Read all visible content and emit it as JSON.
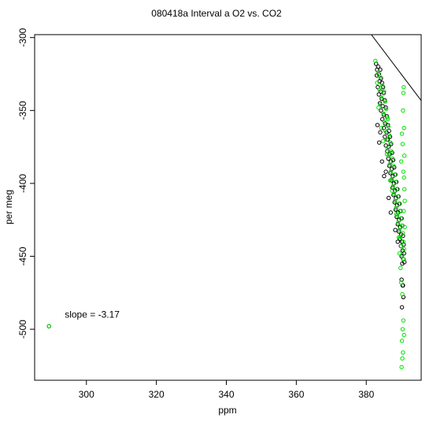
{
  "chart_data": {
    "type": "scatter",
    "title": "080418a   Interval a O2 vs. CO2",
    "xlabel": "ppm",
    "ylabel": "per meg",
    "xlim": [
      285.2,
      395.7
    ],
    "ylim": [
      -535.0,
      -298.0
    ],
    "xticks": [
      300,
      320,
      340,
      360,
      380
    ],
    "yticks": [
      -300,
      -350,
      -400,
      -450,
      -500
    ],
    "ytick_orientation": "vertical",
    "grid": false,
    "legend": "none",
    "annotation": {
      "text": "slope =  -3.17",
      "x": 293.8,
      "y": -492
    },
    "fit_line": {
      "slope": -3.17,
      "intercept": 911.2
    },
    "series": [
      {
        "marker": "open-circle",
        "color": "#000000",
        "points": [
          [
            289.3,
            -498
          ],
          [
            382.8,
            -318
          ],
          [
            383.1,
            -322
          ],
          [
            383.4,
            -320
          ],
          [
            383.0,
            -326
          ],
          [
            383.6,
            -325
          ],
          [
            384.0,
            -322
          ],
          [
            384.2,
            -328
          ],
          [
            383.8,
            -330
          ],
          [
            384.5,
            -331
          ],
          [
            383.3,
            -334
          ],
          [
            384.8,
            -334
          ],
          [
            384.1,
            -337
          ],
          [
            383.6,
            -339
          ],
          [
            385.0,
            -338
          ],
          [
            384.4,
            -342
          ],
          [
            383.9,
            -345
          ],
          [
            385.3,
            -343
          ],
          [
            384.7,
            -347
          ],
          [
            384.2,
            -350
          ],
          [
            385.6,
            -348
          ],
          [
            385.0,
            -353
          ],
          [
            384.6,
            -356
          ],
          [
            385.9,
            -354
          ],
          [
            385.4,
            -359
          ],
          [
            386.2,
            -360
          ],
          [
            385.0,
            -362
          ],
          [
            385.8,
            -365
          ],
          [
            386.5,
            -364
          ],
          [
            385.3,
            -368
          ],
          [
            386.1,
            -370
          ],
          [
            386.8,
            -368
          ],
          [
            385.6,
            -374
          ],
          [
            386.4,
            -375
          ],
          [
            387.1,
            -373
          ],
          [
            386.0,
            -378
          ],
          [
            386.7,
            -380
          ],
          [
            387.4,
            -379
          ],
          [
            386.3,
            -383
          ],
          [
            387.0,
            -385
          ],
          [
            387.7,
            -384
          ],
          [
            386.6,
            -388
          ],
          [
            387.3,
            -390
          ],
          [
            388.0,
            -389
          ],
          [
            386.9,
            -393
          ],
          [
            387.6,
            -395
          ],
          [
            388.3,
            -394
          ],
          [
            387.2,
            -398
          ],
          [
            387.9,
            -400
          ],
          [
            388.6,
            -399
          ],
          [
            387.5,
            -403
          ],
          [
            388.2,
            -405
          ],
          [
            388.9,
            -404
          ],
          [
            387.8,
            -408
          ],
          [
            388.5,
            -410
          ],
          [
            389.2,
            -409
          ],
          [
            388.1,
            -413
          ],
          [
            388.8,
            -415
          ],
          [
            389.5,
            -414
          ],
          [
            388.4,
            -418
          ],
          [
            389.1,
            -420
          ],
          [
            389.8,
            -419
          ],
          [
            388.7,
            -423
          ],
          [
            389.4,
            -425
          ],
          [
            390.1,
            -424
          ],
          [
            389.0,
            -428
          ],
          [
            389.7,
            -430
          ],
          [
            390.3,
            -429
          ],
          [
            389.3,
            -433
          ],
          [
            390.0,
            -435
          ],
          [
            390.5,
            -436
          ],
          [
            389.6,
            -438
          ],
          [
            390.2,
            -440
          ],
          [
            390.7,
            -442
          ],
          [
            389.9,
            -443
          ],
          [
            390.4,
            -446
          ],
          [
            390.8,
            -448
          ],
          [
            390.1,
            -450
          ],
          [
            390.6,
            -452
          ],
          [
            390.3,
            -455
          ],
          [
            390.9,
            -454
          ],
          [
            383.2,
            -360
          ],
          [
            383.7,
            -372
          ],
          [
            384.5,
            -385
          ],
          [
            385.1,
            -395
          ],
          [
            386.4,
            -410
          ],
          [
            387.0,
            -420
          ],
          [
            384.0,
            -365
          ],
          [
            385.6,
            -392
          ],
          [
            388.3,
            -432
          ],
          [
            389.0,
            -440
          ],
          [
            390.4,
            -470
          ],
          [
            390.6,
            -478
          ],
          [
            390.2,
            -485
          ],
          [
            390.5,
            -470
          ],
          [
            390.1,
            -466
          ]
        ]
      },
      {
        "marker": "open-circle",
        "color": "#00e000",
        "points": [
          [
            289.3,
            -498
          ],
          [
            382.6,
            -316
          ],
          [
            383.4,
            -324
          ],
          [
            384.0,
            -327
          ],
          [
            383.1,
            -331
          ],
          [
            384.6,
            -333
          ],
          [
            383.8,
            -336
          ],
          [
            385.1,
            -337
          ],
          [
            384.3,
            -341
          ],
          [
            385.4,
            -344
          ],
          [
            384.0,
            -346
          ],
          [
            385.7,
            -349
          ],
          [
            384.9,
            -352
          ],
          [
            386.0,
            -355
          ],
          [
            385.2,
            -358
          ],
          [
            386.3,
            -361
          ],
          [
            385.5,
            -364
          ],
          [
            386.6,
            -367
          ],
          [
            385.8,
            -370
          ],
          [
            386.9,
            -372
          ],
          [
            386.1,
            -376
          ],
          [
            387.2,
            -378
          ],
          [
            386.4,
            -381
          ],
          [
            387.5,
            -383
          ],
          [
            386.7,
            -387
          ],
          [
            387.8,
            -388
          ],
          [
            387.0,
            -392
          ],
          [
            388.1,
            -394
          ],
          [
            387.3,
            -397
          ],
          [
            388.4,
            -399
          ],
          [
            387.6,
            -402
          ],
          [
            388.7,
            -404
          ],
          [
            387.9,
            -407
          ],
          [
            389.0,
            -409
          ],
          [
            388.2,
            -412
          ],
          [
            389.3,
            -414
          ],
          [
            388.5,
            -417
          ],
          [
            389.6,
            -419
          ],
          [
            388.8,
            -422
          ],
          [
            389.9,
            -424
          ],
          [
            389.1,
            -427
          ],
          [
            390.2,
            -429
          ],
          [
            389.4,
            -432
          ],
          [
            390.4,
            -434
          ],
          [
            389.7,
            -437
          ],
          [
            390.6,
            -440
          ],
          [
            390.0,
            -443
          ],
          [
            390.8,
            -445
          ],
          [
            390.3,
            -449
          ],
          [
            390.7,
            -452
          ],
          [
            390.7,
            -334
          ],
          [
            390.6,
            -338
          ],
          [
            390.5,
            -350
          ],
          [
            390.8,
            -362
          ],
          [
            390.2,
            -366
          ],
          [
            390.4,
            -373
          ],
          [
            390.9,
            -381
          ],
          [
            390.0,
            -385
          ],
          [
            390.6,
            -392
          ],
          [
            390.8,
            -396
          ],
          [
            390.9,
            -404
          ],
          [
            391.0,
            -412
          ],
          [
            390.7,
            -419
          ],
          [
            391.0,
            -430
          ],
          [
            389.8,
            -458
          ],
          [
            390.0,
            -468
          ],
          [
            390.3,
            -476
          ],
          [
            390.6,
            -494
          ],
          [
            390.4,
            -500
          ],
          [
            390.8,
            -504
          ],
          [
            390.2,
            -508
          ],
          [
            390.5,
            -516
          ],
          [
            390.3,
            -520
          ],
          [
            390.1,
            -526
          ],
          [
            383.5,
            -348
          ],
          [
            384.3,
            -362
          ],
          [
            385.9,
            -380
          ],
          [
            386.8,
            -398
          ],
          [
            388.6,
            -421
          ],
          [
            389.3,
            -437
          ],
          [
            384.8,
            -371
          ],
          [
            387.4,
            -405
          ],
          [
            389.5,
            -448
          ],
          [
            386.2,
            -356
          ]
        ]
      }
    ]
  }
}
